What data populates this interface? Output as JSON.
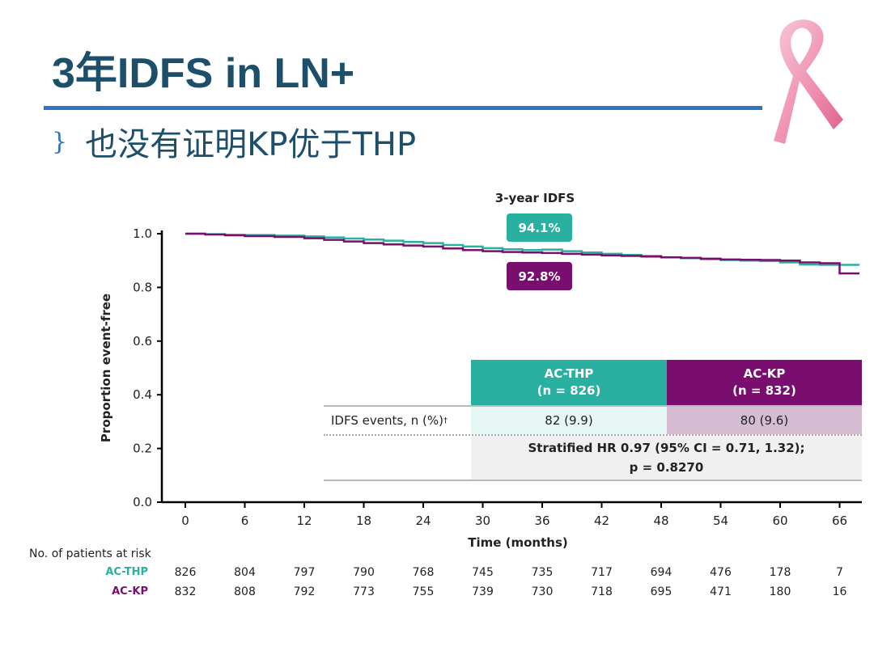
{
  "slide": {
    "title": "3年IDFS in LN+",
    "bullet": "也没有证明KP优于THP",
    "bullet_mark": "}"
  },
  "colors": {
    "thp": "#2ab0a0",
    "kp": "#7a0e6e",
    "title": "#1d4f6b",
    "rule": "#2f73c3"
  },
  "chart_data": {
    "type": "line",
    "title": "3-year IDFS",
    "xlabel": "Time (months)",
    "ylabel": "Proportion event-free",
    "xlim": [
      -5,
      68
    ],
    "ylim": [
      0,
      1.0
    ],
    "xticks": [
      0,
      6,
      12,
      18,
      24,
      30,
      36,
      42,
      48,
      54,
      60,
      66
    ],
    "yticks": [
      "0.0",
      "0.2",
      "0.4",
      "0.6",
      "0.8",
      "1.0"
    ],
    "series": [
      {
        "name": "AC-THP",
        "color": "#2ab0a0",
        "x": [
          0,
          2,
          4,
          6,
          9,
          12,
          14,
          16,
          18,
          20,
          22,
          24,
          26,
          28,
          30,
          32,
          34,
          36,
          38,
          40,
          42,
          44,
          46,
          48,
          50,
          52,
          54,
          56,
          58,
          60,
          62,
          64,
          66,
          68
        ],
        "y": [
          1.0,
          0.998,
          0.996,
          0.995,
          0.993,
          0.99,
          0.986,
          0.982,
          0.978,
          0.974,
          0.969,
          0.965,
          0.958,
          0.952,
          0.946,
          0.942,
          0.939,
          0.941,
          0.935,
          0.93,
          0.925,
          0.921,
          0.917,
          0.912,
          0.909,
          0.905,
          0.902,
          0.9,
          0.898,
          0.893,
          0.885,
          0.884,
          0.884,
          0.884
        ]
      },
      {
        "name": "AC-KP",
        "color": "#7a0e6e",
        "x": [
          0,
          2,
          4,
          6,
          9,
          12,
          14,
          16,
          18,
          20,
          22,
          24,
          26,
          28,
          30,
          32,
          34,
          36,
          38,
          40,
          42,
          44,
          46,
          48,
          50,
          52,
          54,
          56,
          58,
          60,
          62,
          64,
          65.9,
          66,
          68
        ],
        "y": [
          1.0,
          0.997,
          0.994,
          0.991,
          0.988,
          0.983,
          0.977,
          0.971,
          0.965,
          0.96,
          0.956,
          0.952,
          0.945,
          0.939,
          0.935,
          0.932,
          0.93,
          0.928,
          0.925,
          0.922,
          0.919,
          0.917,
          0.915,
          0.912,
          0.91,
          0.907,
          0.904,
          0.903,
          0.902,
          0.9,
          0.893,
          0.89,
          0.89,
          0.852,
          0.852
        ]
      }
    ],
    "annotations": [
      {
        "series": "AC-THP",
        "text": "94.1%"
      },
      {
        "series": "AC-KP",
        "text": "92.8%"
      }
    ]
  },
  "table": {
    "thp_head_1": "AC-THP",
    "thp_head_2": "(n = 826)",
    "kp_head_1": "AC-KP",
    "kp_head_2": "(n = 832)",
    "row_label": "IDFS events, n (%)",
    "row_label_sup": "†",
    "thp_value": "82 (9.9)",
    "kp_value": "80 (9.6)",
    "hr_line1": "Stratified HR 0.97 (95% CI = 0.71, 1.32);",
    "hr_line2": "p = 0.8270"
  },
  "risk": {
    "title": "No. of patients at risk",
    "rows": [
      {
        "label": "AC-THP",
        "color": "#2ab0a0",
        "values": [
          "826",
          "804",
          "797",
          "790",
          "768",
          "745",
          "735",
          "717",
          "694",
          "476",
          "178",
          "7"
        ]
      },
      {
        "label": "AC-KP",
        "color": "#7a0e6e",
        "values": [
          "832",
          "808",
          "792",
          "773",
          "755",
          "739",
          "730",
          "718",
          "695",
          "471",
          "180",
          "16"
        ]
      }
    ]
  }
}
